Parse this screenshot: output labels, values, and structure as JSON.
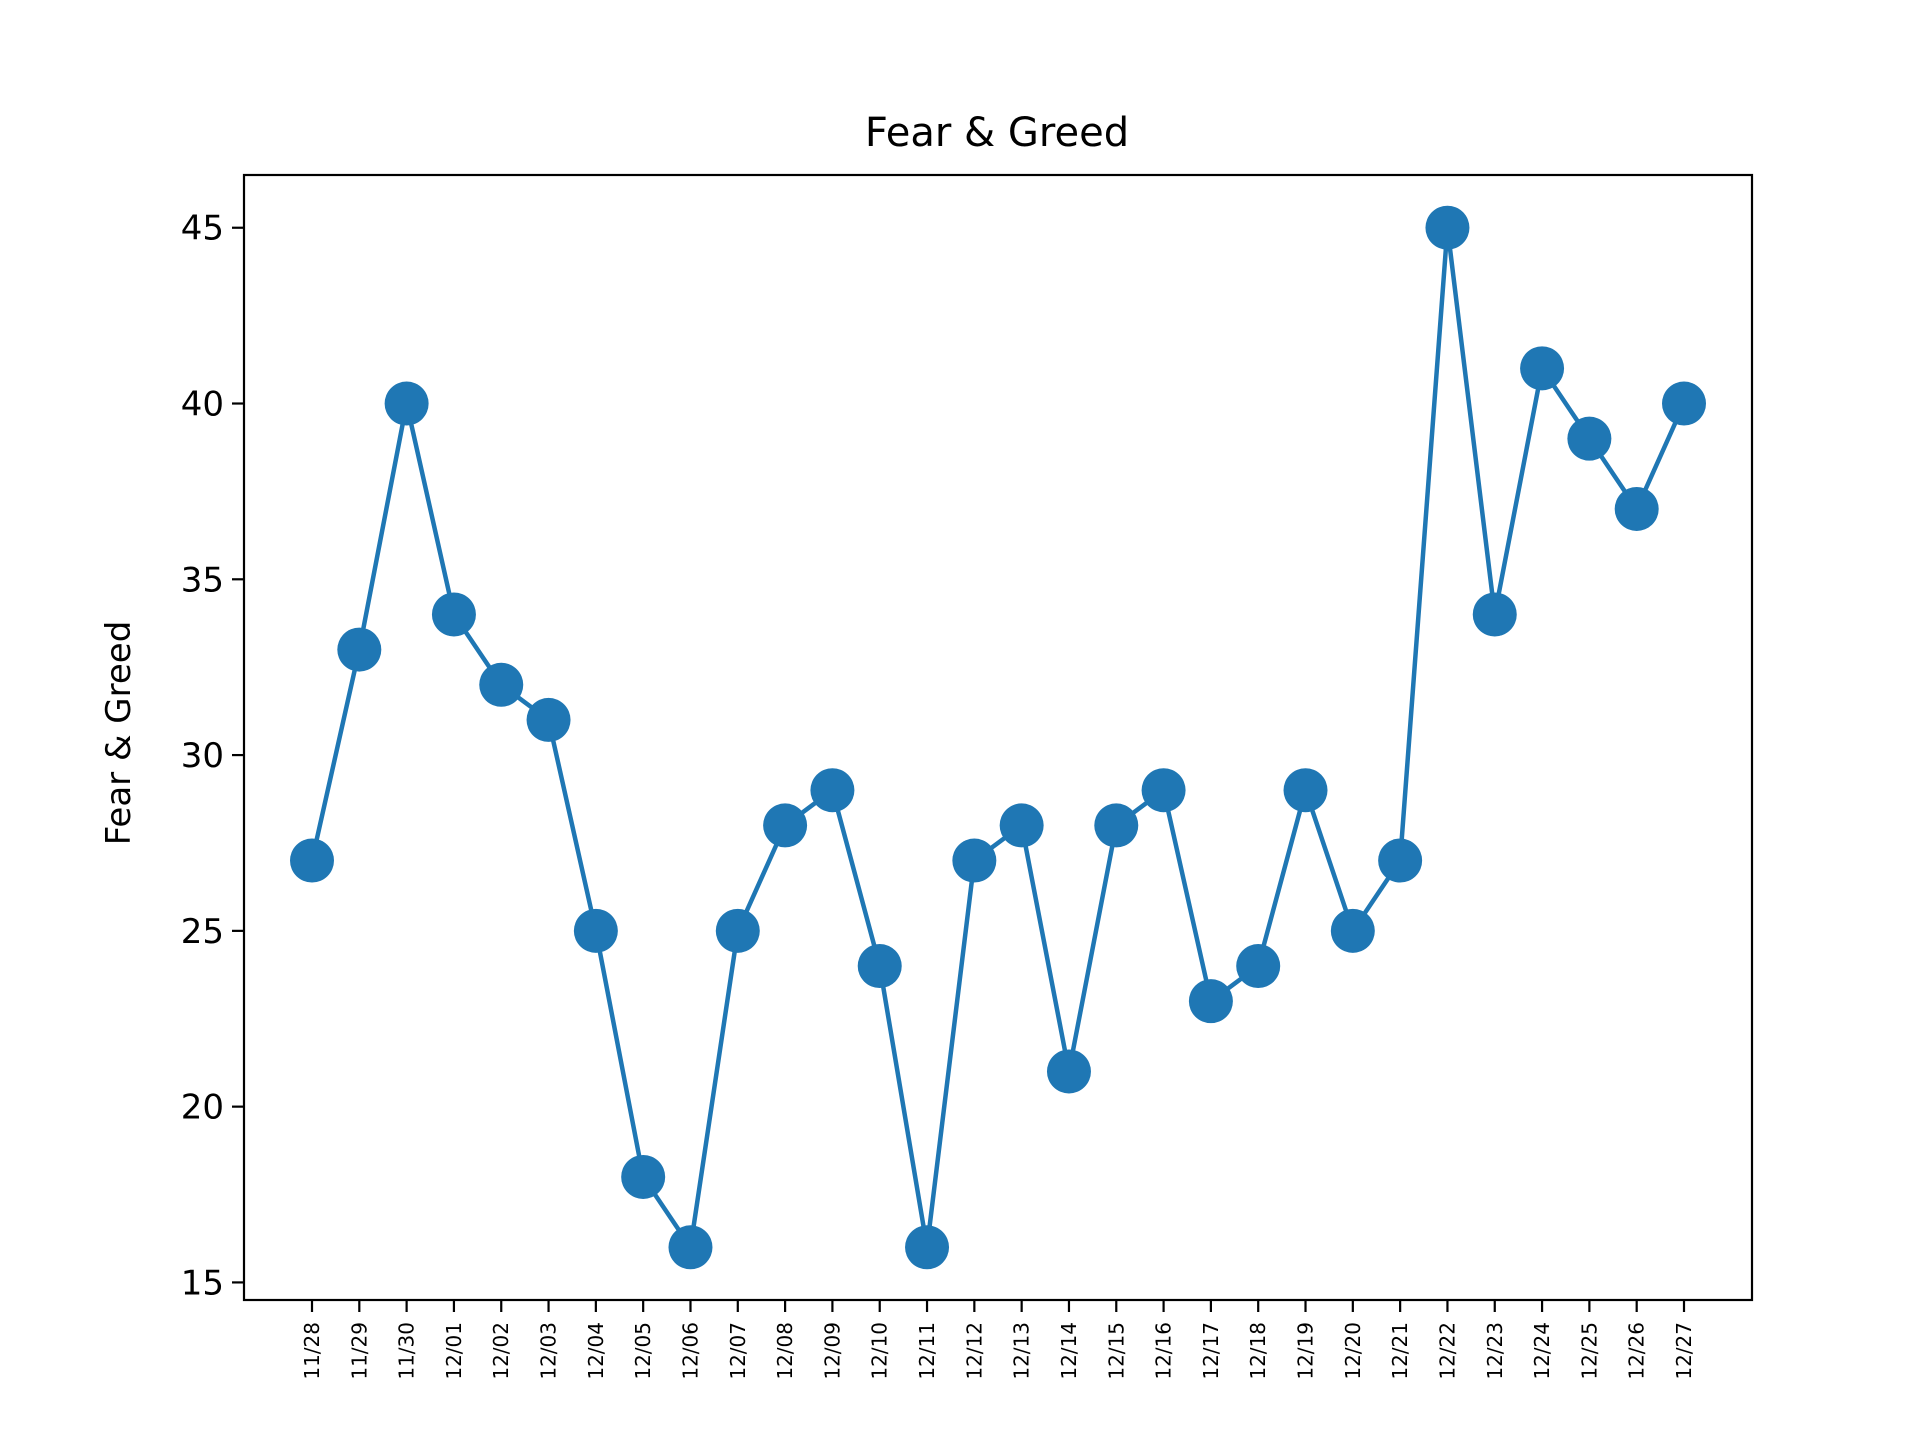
{
  "chart_data": {
    "type": "line",
    "title": "Fear & Greed",
    "xlabel": "",
    "ylabel": "Fear  & Greed",
    "categories": [
      "11/28",
      "11/29",
      "11/30",
      "12/01",
      "12/02",
      "12/03",
      "12/04",
      "12/05",
      "12/06",
      "12/07",
      "12/08",
      "12/09",
      "12/10",
      "12/11",
      "12/12",
      "12/13",
      "12/14",
      "12/15",
      "12/16",
      "12/17",
      "12/18",
      "12/19",
      "12/20",
      "12/21",
      "12/22",
      "12/23",
      "12/24",
      "12/25",
      "12/26",
      "12/27"
    ],
    "series": [
      {
        "values": [
          27,
          33,
          40,
          34,
          32,
          31,
          25,
          18,
          16,
          25,
          28,
          29,
          24,
          16,
          27,
          28,
          21,
          28,
          29,
          23,
          24,
          29,
          25,
          27,
          45,
          34,
          41,
          39,
          37,
          40
        ],
        "color": "#1f77b4",
        "marker": "circle"
      }
    ],
    "yticks": [
      15,
      20,
      25,
      30,
      35,
      40,
      45
    ],
    "ylim": [
      14.5,
      46.5
    ],
    "grid": false,
    "legend": "none"
  }
}
